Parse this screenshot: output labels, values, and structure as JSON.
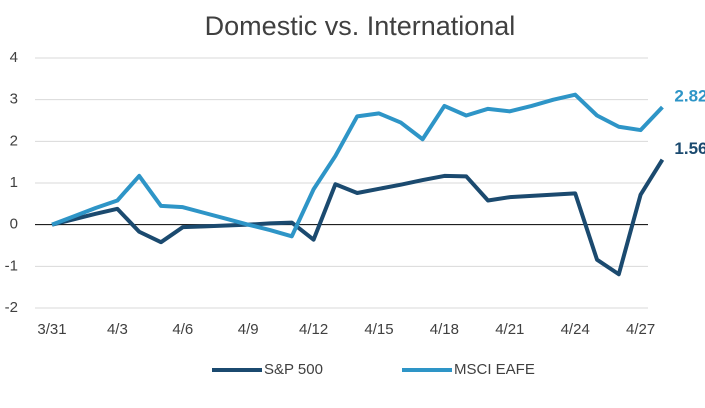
{
  "chart_data": {
    "type": "line",
    "title": "Domestic vs. International",
    "x": [
      "3/31",
      "4/1",
      "4/2",
      "4/3",
      "4/4",
      "4/5",
      "4/6",
      "4/7",
      "4/8",
      "4/9",
      "4/10",
      "4/11",
      "4/12",
      "4/13",
      "4/14",
      "4/15",
      "4/16",
      "4/17",
      "4/18",
      "4/19",
      "4/20",
      "4/21",
      "4/22",
      "4/23",
      "4/24",
      "4/25",
      "4/26",
      "4/27",
      "4/28"
    ],
    "xticks": [
      "3/31",
      "4/3",
      "4/6",
      "4/9",
      "4/12",
      "4/15",
      "4/18",
      "4/21",
      "4/24",
      "4/27"
    ],
    "series": [
      {
        "name": "S&P 500",
        "color": "#1b4a6f",
        "values": [
          0,
          0.13,
          0.26,
          0.38,
          -0.17,
          -0.42,
          -0.06,
          -0.04,
          -0.02,
          0,
          0.03,
          0.05,
          -0.36,
          0.97,
          0.76,
          0.86,
          0.96,
          1.07,
          1.17,
          1.16,
          0.58,
          0.66,
          0.69,
          0.72,
          0.75,
          -0.84,
          -1.19,
          0.72,
          1.56
        ]
      },
      {
        "name": "MSCI EAFE",
        "color": "#2e95c7",
        "values": [
          0,
          0.2,
          0.4,
          0.58,
          1.17,
          0.45,
          0.42,
          0.28,
          0.14,
          0,
          -0.13,
          -0.28,
          0.85,
          1.65,
          2.6,
          2.67,
          2.45,
          2.05,
          2.85,
          2.62,
          2.78,
          2.72,
          2.85,
          3.0,
          3.12,
          2.62,
          2.35,
          2.27,
          2.82
        ]
      }
    ],
    "ylim": [
      -2,
      4
    ],
    "yticks": [
      -2,
      -1,
      0,
      1,
      2,
      3,
      4
    ],
    "grid": true,
    "legend": "bottom"
  }
}
